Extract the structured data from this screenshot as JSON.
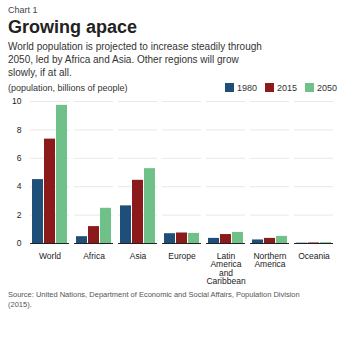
{
  "chart_data": {
    "type": "bar",
    "annotations": [
      "Chart 1"
    ],
    "title": "Growing apace",
    "subtitle": "World population is projected to increase steadily through\n2050, led by Africa and Asia. Other regions will grow\nslowly, if at all.",
    "ylabel": "(population, billions of people)",
    "caption": "Source: United Nations, Department of Economic and Social Affairs, Population Division\n(2015).",
    "categories": [
      "World",
      "Africa",
      "Asia",
      "Europe",
      "Latin\nAmerica\nand\nCaribbean",
      "Northern\nAmerica",
      "Oceania"
    ],
    "series": [
      {
        "name": "1980",
        "color": "#1f4e79",
        "values": [
          4.5,
          0.48,
          2.65,
          0.69,
          0.36,
          0.25,
          0.023
        ]
      },
      {
        "name": "2015",
        "color": "#8b1a1a",
        "values": [
          7.35,
          1.19,
          4.45,
          0.74,
          0.63,
          0.36,
          0.039
        ]
      },
      {
        "name": "2050",
        "color": "#70c08a",
        "values": [
          9.73,
          2.48,
          5.27,
          0.71,
          0.78,
          0.5,
          0.057
        ]
      }
    ],
    "ylim": [
      0,
      10
    ],
    "yticks": [
      0,
      2,
      4,
      6,
      8,
      10
    ],
    "grid": true,
    "legend": "upper right"
  }
}
